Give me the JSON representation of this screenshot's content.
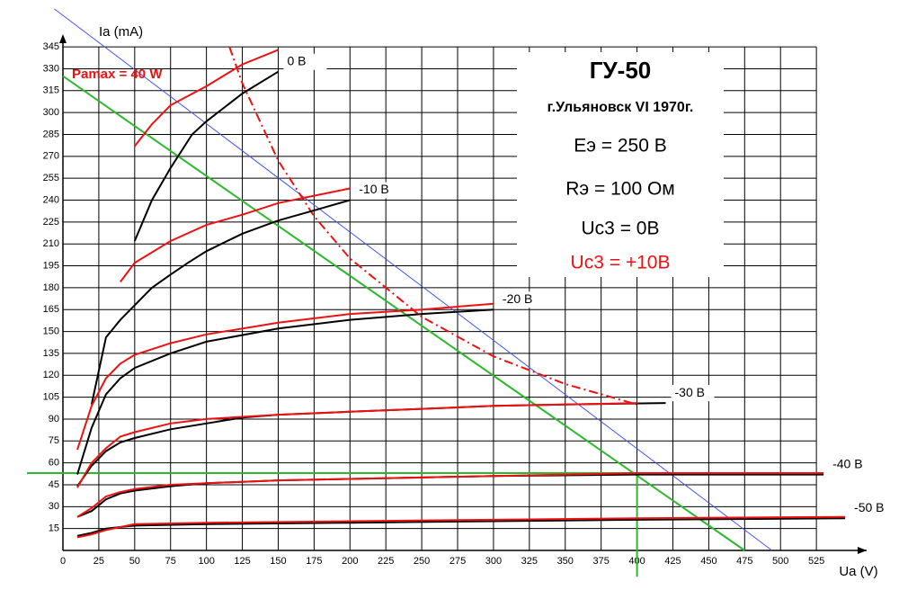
{
  "chart_data": {
    "type": "line",
    "title": "ГУ-50",
    "subtitle": "г.Ульяновск VI 1970г.",
    "annotations": [
      "Eэ = 250 В",
      "Rэ = 100 Ом"
    ],
    "legend_texts": [
      {
        "text": "Uc3 = 0В",
        "color": "#000000"
      },
      {
        "text": "Uc3 = +10В",
        "color": "#ee1111"
      }
    ],
    "xlabel": "Ua (V)",
    "ylabel": "Ia (mA)",
    "xlim": [
      0,
      560
    ],
    "ylim": [
      0,
      350
    ],
    "xticks": [
      0,
      25,
      50,
      75,
      100,
      125,
      150,
      175,
      200,
      225,
      250,
      275,
      300,
      325,
      350,
      375,
      400,
      425,
      450,
      475,
      500,
      525
    ],
    "yticks": [
      15,
      30,
      45,
      60,
      75,
      90,
      105,
      120,
      135,
      150,
      165,
      180,
      195,
      210,
      225,
      240,
      255,
      270,
      285,
      300,
      315,
      330,
      345
    ],
    "grid": true,
    "series": [
      {
        "name": "0 В",
        "color": "#000000",
        "x": [
          50,
          62,
          75,
          90,
          100,
          125,
          150
        ],
        "values": [
          212,
          240,
          262,
          285,
          294,
          313,
          328
        ]
      },
      {
        "color": "#ee1111",
        "x": [
          50,
          62,
          75,
          100,
          125,
          150
        ],
        "values": [
          277,
          292,
          305,
          318,
          333,
          343
        ]
      },
      {
        "name": "-10 В",
        "color": "#000000",
        "x": [
          20,
          30,
          40,
          50,
          62,
          75,
          87,
          100,
          125,
          150,
          175,
          200
        ],
        "values": [
          100,
          146,
          158,
          168,
          180,
          189,
          197,
          205,
          217,
          226,
          233,
          240
        ]
      },
      {
        "color": "#ee1111",
        "x": [
          40,
          50,
          75,
          100,
          125,
          150,
          175,
          200
        ],
        "values": [
          184,
          197,
          212,
          223,
          230,
          238,
          243,
          248
        ]
      },
      {
        "name": "-20 В",
        "color": "#000000",
        "x": [
          10,
          20,
          30,
          40,
          50,
          75,
          100,
          150,
          200,
          250,
          300
        ],
        "values": [
          52,
          84,
          107,
          118,
          125,
          135,
          143,
          152,
          158,
          162,
          165
        ]
      },
      {
        "color": "#ee1111",
        "x": [
          10,
          20,
          30,
          40,
          50,
          75,
          100,
          150,
          200,
          250,
          300
        ],
        "values": [
          69,
          99,
          118,
          128,
          134,
          142,
          148,
          156,
          162,
          165,
          169
        ]
      },
      {
        "name": "-30 В",
        "color": "#000000",
        "x": [
          10,
          20,
          30,
          40,
          50,
          75,
          100,
          125,
          150,
          200,
          250,
          300,
          350,
          420
        ],
        "values": [
          44,
          58,
          68,
          74,
          77,
          83,
          87,
          91,
          93,
          95,
          97,
          99,
          100,
          101
        ]
      },
      {
        "color": "#ee1111",
        "x": [
          10,
          20,
          30,
          40,
          50,
          75,
          100,
          150,
          200,
          250,
          300,
          350,
          400
        ],
        "values": [
          43,
          60,
          70,
          78,
          81,
          87,
          90,
          93,
          95,
          97,
          99,
          100,
          101
        ]
      },
      {
        "name": "-40 В",
        "color": "#000000",
        "x": [
          10,
          20,
          30,
          40,
          50,
          75,
          100,
          150,
          200,
          250,
          300,
          400,
          530
        ],
        "values": [
          23,
          27,
          35,
          39,
          41,
          44,
          46,
          48,
          49,
          50,
          51,
          52,
          52
        ]
      },
      {
        "color": "#ee1111",
        "x": [
          10,
          20,
          30,
          40,
          50,
          75,
          100,
          150,
          200,
          250,
          300,
          400,
          530
        ],
        "values": [
          23,
          29,
          37,
          40,
          42,
          45,
          46,
          48,
          49,
          50,
          51,
          53,
          53
        ]
      },
      {
        "name": "-50 В",
        "color": "#000000",
        "x": [
          10,
          20,
          30,
          40,
          50,
          100,
          200,
          300,
          400,
          545
        ],
        "values": [
          10,
          12,
          15,
          16,
          17,
          18,
          19,
          20,
          21,
          22
        ]
      },
      {
        "color": "#ee1111",
        "x": [
          10,
          20,
          30,
          40,
          50,
          100,
          200,
          300,
          400,
          545
        ],
        "values": [
          9,
          11,
          14,
          16,
          18,
          19,
          20,
          21,
          22,
          23
        ]
      }
    ],
    "pamax": {
      "label": "Pamax = 40 W",
      "color": "#ee1111",
      "x": [
        116,
        125,
        150,
        175,
        200,
        250,
        300,
        350,
        400
      ],
      "values": [
        345,
        320,
        267,
        229,
        200,
        160,
        133,
        114,
        100
      ]
    },
    "lines": [
      {
        "color": "#2db82d",
        "x": [
          0,
          475
        ],
        "values": [
          325,
          0
        ]
      },
      {
        "color": "#2db82d",
        "x": [
          -25,
          400
        ],
        "values": [
          53,
          53
        ]
      },
      {
        "color": "#2db82d",
        "x": [
          400,
          400
        ],
        "values": [
          53,
          -18
        ]
      },
      {
        "color": "#4455ee",
        "x": [
          -6,
          494
        ],
        "values": [
          371,
          0
        ]
      }
    ]
  }
}
